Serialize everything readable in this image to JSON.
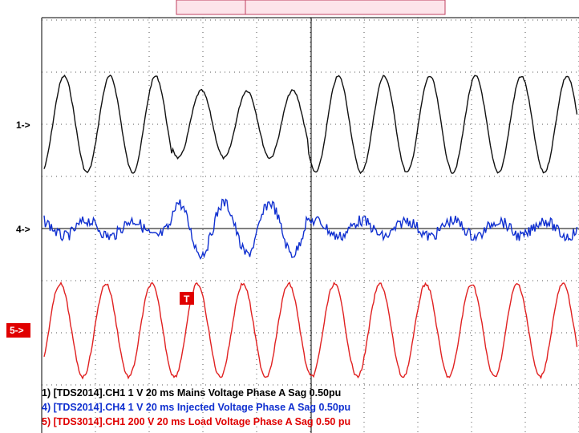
{
  "markers": {
    "ch1": "1->",
    "ch4": "4->",
    "ch5": "5->",
    "trigger": "T"
  },
  "legend": [
    "1) [TDS2014].CH1  1 V  20 ms Mains Voltage Phase A Sag 0.50pu",
    "4) [TDS2014].CH4  1 V  20 ms Injected Voltage Phase A Sag 0.50pu",
    "5) [TDS3014].CH1  200 V  20 ms Load Voltage Phase A Sag 0.50 pu"
  ]
}
